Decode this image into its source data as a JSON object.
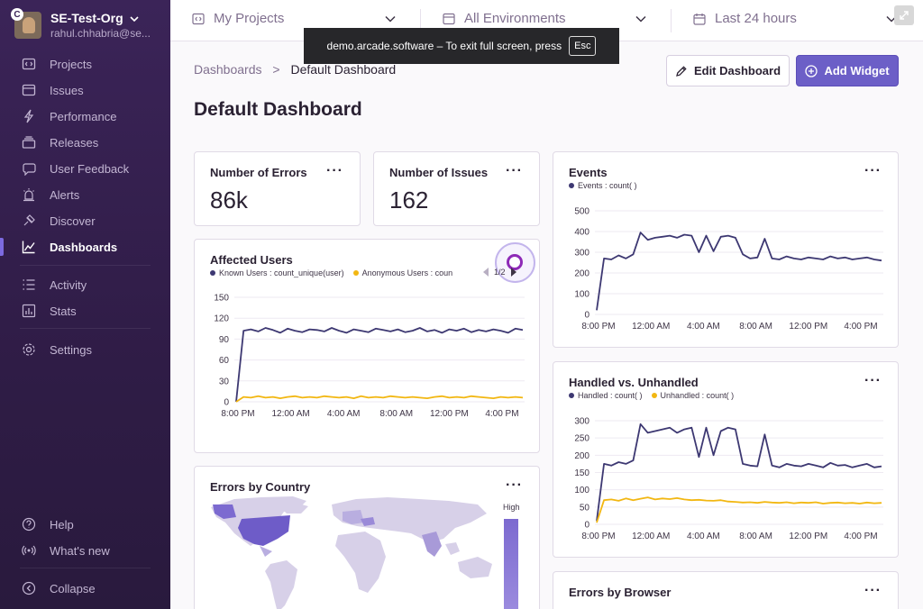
{
  "org": {
    "name": "SE-Test-Org",
    "user": "rahul.chhabria@se..."
  },
  "sidebar": {
    "items": [
      {
        "label": "Projects",
        "icon": "projects-icon"
      },
      {
        "label": "Issues",
        "icon": "issues-icon"
      },
      {
        "label": "Performance",
        "icon": "performance-icon"
      },
      {
        "label": "Releases",
        "icon": "releases-icon"
      },
      {
        "label": "User Feedback",
        "icon": "user-feedback-icon"
      },
      {
        "label": "Alerts",
        "icon": "alerts-icon"
      },
      {
        "label": "Discover",
        "icon": "discover-icon"
      },
      {
        "label": "Dashboards",
        "icon": "dashboards-icon",
        "active": true
      },
      {
        "label": "Activity",
        "icon": "activity-icon"
      },
      {
        "label": "Stats",
        "icon": "stats-icon"
      },
      {
        "label": "Settings",
        "icon": "settings-icon"
      }
    ],
    "footer": [
      {
        "label": "Help",
        "icon": "help-icon"
      },
      {
        "label": "What's new",
        "icon": "broadcast-icon"
      },
      {
        "label": "Collapse",
        "icon": "collapse-icon"
      }
    ]
  },
  "filters": {
    "projects": "My Projects",
    "environments": "All Environments",
    "period": "Last 24 hours"
  },
  "toast": {
    "text": "demo.arcade.software – To exit full screen, press",
    "key": "Esc"
  },
  "breadcrumb": {
    "parent": "Dashboards",
    "separator": ">",
    "current": "Default Dashboard"
  },
  "page": {
    "title": "Default Dashboard"
  },
  "actions": {
    "edit": "Edit Dashboard",
    "add": "Add Widget"
  },
  "widgets": {
    "errors": {
      "title": "Number of Errors",
      "value": "86k"
    },
    "issues": {
      "title": "Number of Issues",
      "value": "162"
    },
    "affected": {
      "title": "Affected Users",
      "legend": [
        "Known Users : count_unique(user)",
        "Anonymous Users : coun"
      ],
      "pager": "1/2"
    },
    "events": {
      "title": "Events",
      "legend": [
        "Events : count( )"
      ]
    },
    "handled": {
      "title": "Handled vs. Unhandled",
      "legend": [
        "Handled : count( )",
        "Unhandled : count( )"
      ]
    },
    "country": {
      "title": "Errors by Country",
      "scale_label": "High"
    },
    "browser": {
      "title": "Errors by Browser"
    },
    "menu": "···"
  },
  "colors": {
    "accent": "#6c5fc7",
    "series_primary": "#3d3872",
    "series_secondary": "#f2b712"
  },
  "chart_data": [
    {
      "type": "line",
      "title": "Affected Users",
      "x_ticks": [
        "8:00 PM",
        "12:00 AM",
        "4:00 AM",
        "8:00 AM",
        "12:00 PM",
        "4:00 PM"
      ],
      "y_ticks": [
        0,
        30,
        60,
        90,
        120,
        150
      ],
      "ylim": [
        0,
        150
      ],
      "series": [
        {
          "name": "Known Users : count_unique(user)",
          "color": "#3d3872",
          "values": [
            0,
            102,
            104,
            101,
            106,
            103,
            99,
            105,
            102,
            100,
            104,
            103,
            101,
            106,
            102,
            99,
            104,
            102,
            100,
            105,
            103,
            101,
            104,
            100,
            102,
            106,
            101,
            103,
            99,
            104,
            102,
            105,
            100,
            103,
            101,
            104,
            102,
            99,
            105,
            103
          ]
        },
        {
          "name": "Anonymous Users : coun",
          "color": "#f2b712",
          "values": [
            0,
            7,
            6,
            8,
            6,
            7,
            5,
            7,
            8,
            6,
            7,
            6,
            8,
            7,
            6,
            7,
            5,
            8,
            6,
            7,
            6,
            8,
            7,
            6,
            7,
            6,
            5,
            7,
            8,
            6,
            7,
            6,
            8,
            7,
            6,
            5,
            7,
            6,
            7,
            6
          ]
        }
      ]
    },
    {
      "type": "line",
      "title": "Events",
      "x_ticks": [
        "8:00 PM",
        "12:00 AM",
        "4:00 AM",
        "8:00 AM",
        "12:00 PM",
        "4:00 PM"
      ],
      "y_ticks": [
        0,
        100,
        200,
        300,
        400,
        500
      ],
      "ylim": [
        0,
        500
      ],
      "series": [
        {
          "name": "Events : count( )",
          "color": "#3d3872",
          "values": [
            20,
            270,
            265,
            285,
            270,
            290,
            395,
            360,
            370,
            375,
            380,
            370,
            385,
            380,
            300,
            380,
            305,
            375,
            380,
            370,
            290,
            270,
            275,
            365,
            270,
            265,
            280,
            270,
            265,
            275,
            270,
            265,
            280,
            270,
            275,
            265,
            270,
            275,
            265,
            260
          ]
        }
      ]
    },
    {
      "type": "line",
      "title": "Handled vs. Unhandled",
      "x_ticks": [
        "8:00 PM",
        "12:00 AM",
        "4:00 AM",
        "8:00 AM",
        "12:00 PM",
        "4:00 PM"
      ],
      "y_ticks": [
        0,
        50,
        100,
        150,
        200,
        250,
        300
      ],
      "ylim": [
        0,
        300
      ],
      "series": [
        {
          "name": "Handled : count( )",
          "color": "#3d3872",
          "values": [
            10,
            175,
            170,
            180,
            175,
            185,
            290,
            265,
            270,
            275,
            280,
            265,
            275,
            280,
            195,
            280,
            200,
            270,
            280,
            275,
            175,
            170,
            168,
            260,
            170,
            165,
            175,
            170,
            168,
            175,
            170,
            165,
            178,
            170,
            172,
            165,
            170,
            175,
            165,
            168
          ]
        },
        {
          "name": "Unhandled : count( )",
          "color": "#f2b712",
          "values": [
            5,
            70,
            72,
            68,
            75,
            70,
            74,
            78,
            72,
            75,
            73,
            76,
            72,
            70,
            71,
            69,
            68,
            70,
            66,
            65,
            63,
            64,
            62,
            65,
            63,
            62,
            64,
            61,
            63,
            62,
            64,
            60,
            62,
            63,
            61,
            62,
            60,
            63,
            61,
            62
          ]
        }
      ]
    }
  ]
}
